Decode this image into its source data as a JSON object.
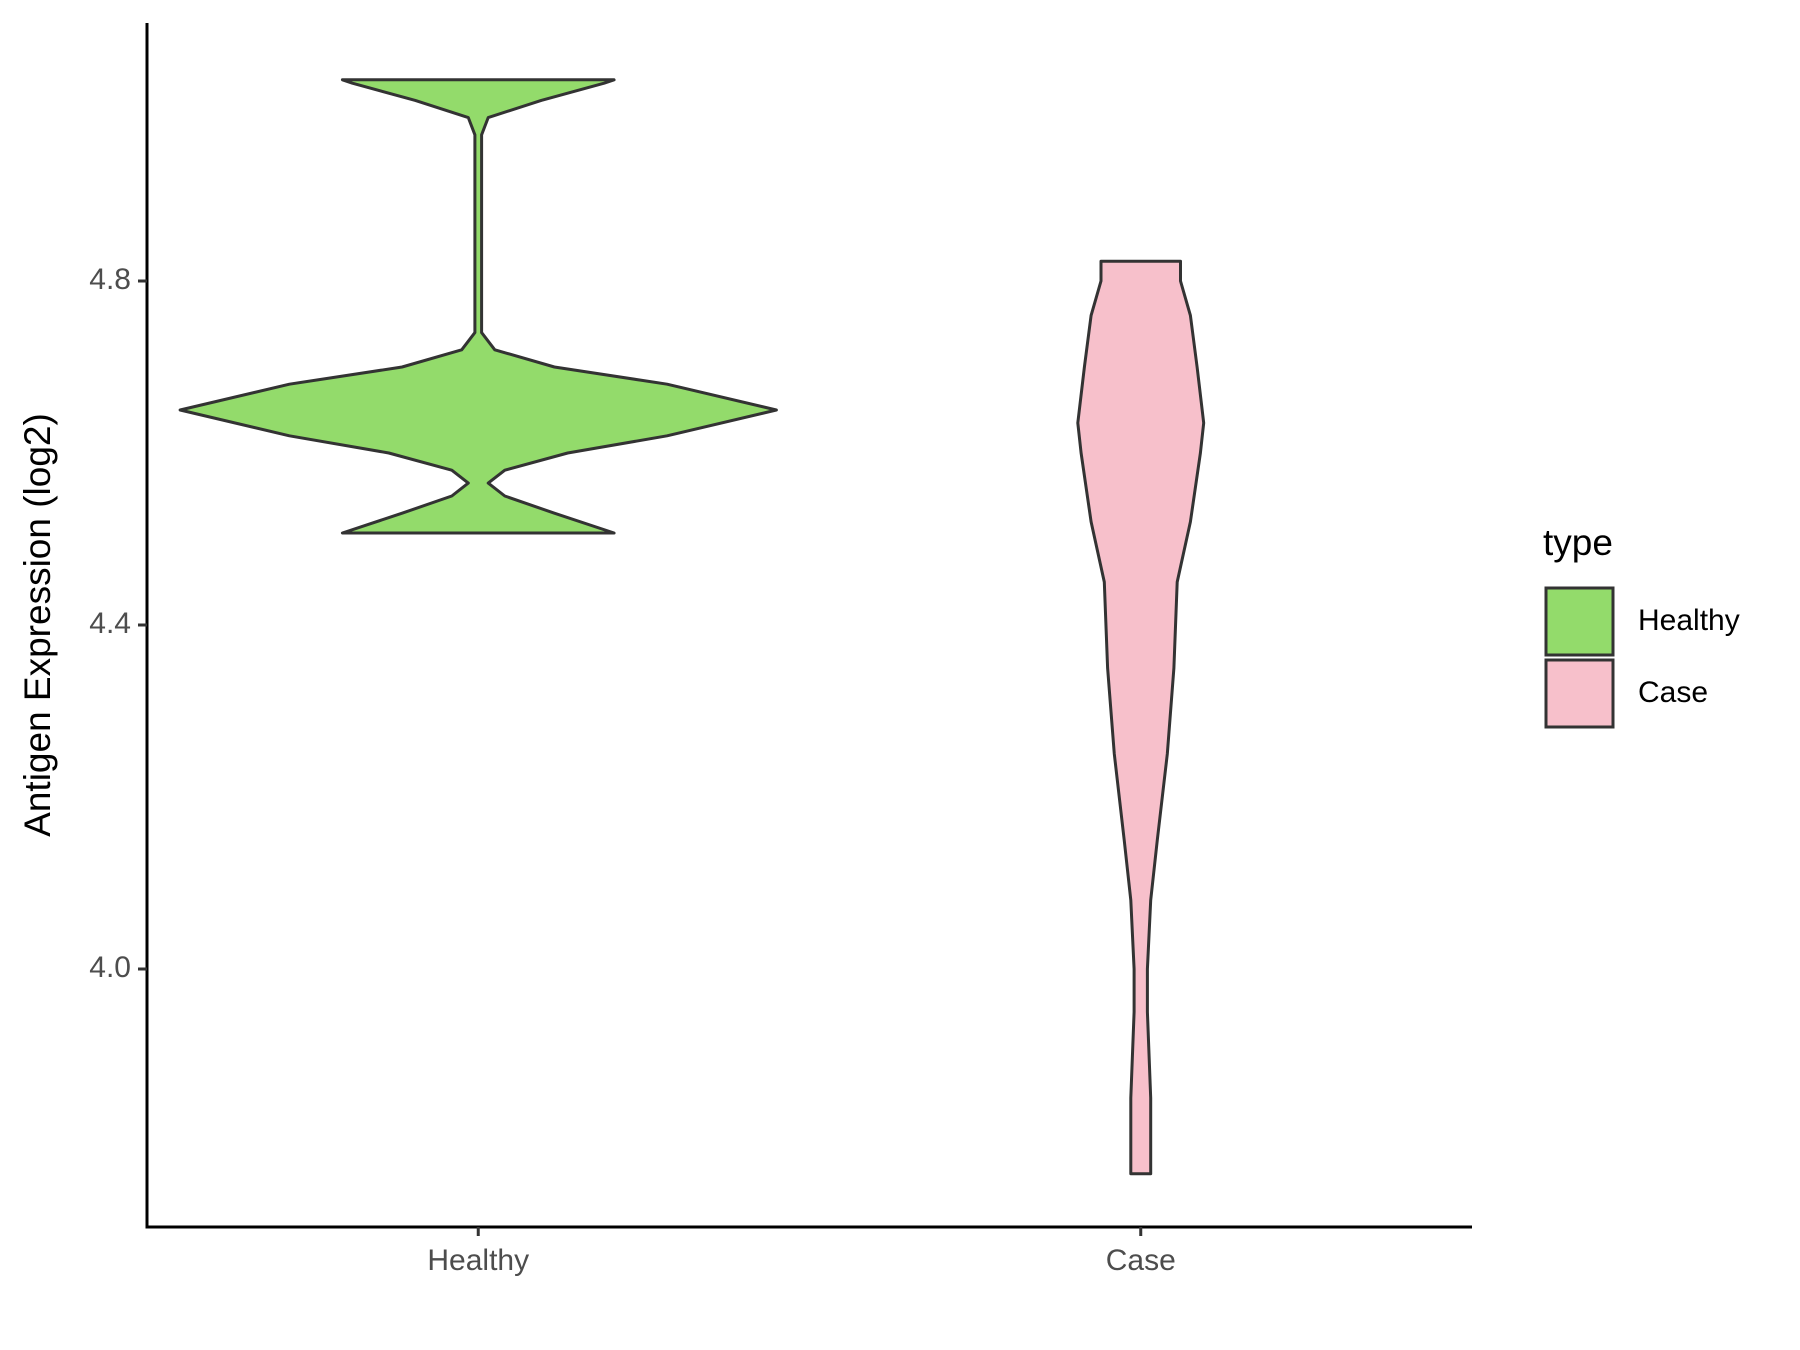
{
  "chart_data": {
    "type": "violin",
    "y_label": "Antigen Expression (log2)",
    "categories": [
      "Healthy",
      "Case"
    ],
    "legend_title": "type",
    "legend_position": "right",
    "ylim": [
      3.7,
      5.1
    ],
    "yticks": [
      {
        "value": 4,
        "label": "4.0"
      },
      4.4,
      4.8
    ],
    "series": [
      {
        "name": "Healthy",
        "color": "#93db6b",
        "y": [
          4.507,
          4.53,
          4.55,
          4.565,
          4.58,
          4.6,
          4.62,
          4.65,
          4.68,
          4.7,
          4.72,
          4.74,
          4.8,
          4.9,
          4.97,
          4.99,
          5.01,
          5.03,
          5.034
        ],
        "widths": [
          0.41,
          0.23,
          0.08,
          0.03,
          0.08,
          0.27,
          0.57,
          0.9,
          0.57,
          0.23,
          0.05,
          0.01,
          0.01,
          0.01,
          0.01,
          0.03,
          0.19,
          0.38,
          0.41
        ]
      },
      {
        "name": "Case",
        "color": "#f7c0cb",
        "y": [
          3.762,
          3.85,
          3.95,
          4.0,
          4.08,
          4.15,
          4.25,
          4.35,
          4.45,
          4.52,
          4.6,
          4.635,
          4.7,
          4.76,
          4.8,
          4.823
        ],
        "widths": [
          0.03,
          0.03,
          0.02,
          0.02,
          0.03,
          0.05,
          0.08,
          0.1,
          0.11,
          0.15,
          0.18,
          0.19,
          0.17,
          0.15,
          0.12,
          0.12
        ]
      }
    ]
  }
}
